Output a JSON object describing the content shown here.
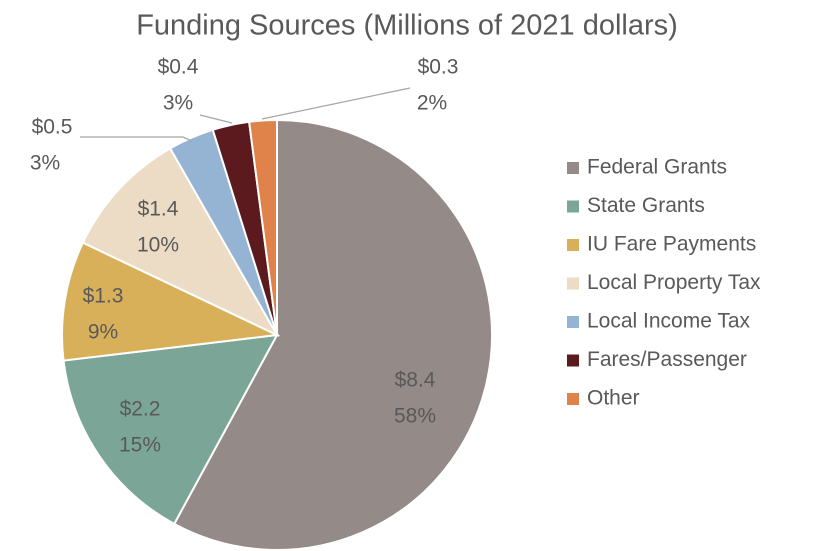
{
  "chart_data": {
    "type": "pie",
    "title": "Funding Sources (Millions of 2021 dollars)",
    "categories": [
      "Federal Grants",
      "State Grants",
      "IU Fare Payments",
      "Local Property Tax",
      "Local Income Tax",
      "Fares/Passenger",
      "Other"
    ],
    "values": [
      8.4,
      2.2,
      1.3,
      1.4,
      0.5,
      0.4,
      0.3
    ],
    "value_labels": [
      "$8.4",
      "$2.2",
      "$1.3",
      "$1.4",
      "$0.5",
      "$0.4",
      "$0.3"
    ],
    "percents": [
      58,
      15,
      9,
      10,
      3,
      3,
      2
    ],
    "percent_labels": [
      "58%",
      "15%",
      "9%",
      "10%",
      "3%",
      "3%",
      "2%"
    ],
    "colors": [
      "#948a87",
      "#7ba697",
      "#d9b05a",
      "#ecdcc5",
      "#95b3d3",
      "#5c1a1f",
      "#e0834a"
    ],
    "legend": "right"
  }
}
